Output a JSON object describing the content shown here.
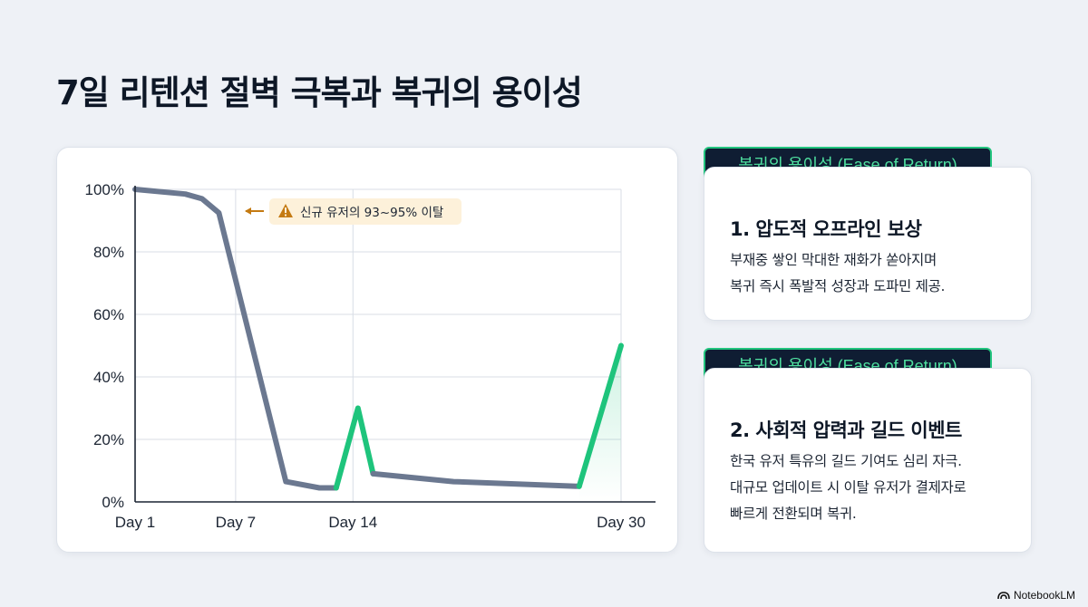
{
  "page": {
    "title": "7일 리텐션 절벽 극복과 복귀의 용이성"
  },
  "chart_data": {
    "type": "line",
    "x_ticks": [
      "Day 1",
      "Day 7",
      "Day 14",
      "Day 30"
    ],
    "y_ticks": [
      "0%",
      "20%",
      "40%",
      "60%",
      "80%",
      "100%"
    ],
    "ylim": [
      0,
      100
    ],
    "xlim": [
      1,
      30
    ],
    "grid": true,
    "series": [
      {
        "color": "#6b7890",
        "x": [
          1,
          4,
          5,
          6,
          10,
          12,
          13
        ],
        "y": [
          100,
          98.5,
          97,
          92.5,
          6.5,
          4.5,
          4.5
        ]
      },
      {
        "color": "#1ec47c",
        "x": [
          13,
          14.3,
          15.2
        ],
        "y": [
          4.5,
          30,
          9
        ]
      },
      {
        "color": "#6b7890",
        "x": [
          15.2,
          20,
          27.5
        ],
        "y": [
          9,
          6.5,
          5
        ]
      },
      {
        "color": "#1ec47c",
        "x": [
          27.5,
          30
        ],
        "y": [
          5,
          50
        ]
      }
    ],
    "annotation": {
      "text": "신규 유저의 93~95% 이탈",
      "icon": "warning-icon",
      "color": "#c47a12",
      "background": "#fdf1da"
    }
  },
  "cards": [
    {
      "tag": "복귀의 용이성 (Ease of Return)",
      "heading": "1. 압도적 오프라인 보상",
      "lines": [
        "부재중 쌓인 막대한 재화가 쏟아지며",
        "복귀 즉시 폭발적 성장과 도파민 제공."
      ]
    },
    {
      "tag": "복귀의 용이성 (Ease of Return)",
      "heading": "2. 사회적 압력과 길드 이벤트",
      "lines": [
        "한국 유저 특유의 길드 기여도 심리 자극.",
        "대규모 업데이트 시 이탈 유저가 결제자로",
        "빠르게 전환되며 복귀."
      ]
    }
  ],
  "brand": {
    "label": "NotebookLM",
    "icon": "notebooklm-logo-icon"
  },
  "colors": {
    "accent_green": "#1ec47c",
    "line_gray": "#6b7890",
    "tag_bg": "#0f1d33"
  }
}
